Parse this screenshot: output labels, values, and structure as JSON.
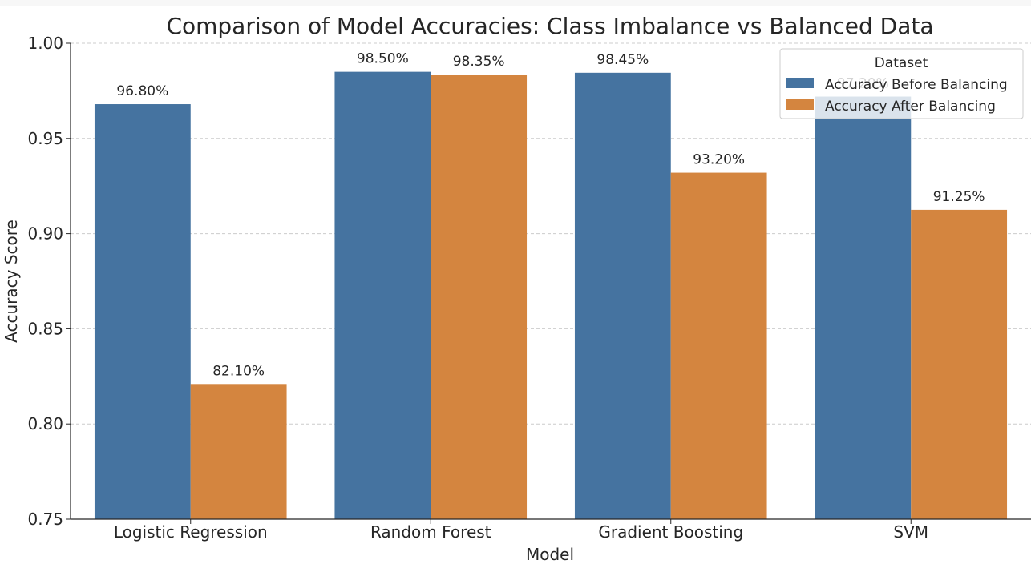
{
  "chart_data": {
    "type": "bar",
    "title": "Comparison of Model Accuracies: Class Imbalance vs Balanced Data",
    "xlabel": "Model",
    "ylabel": "Accuracy Score",
    "ylim": [
      0.75,
      1.0
    ],
    "yticks": [
      "0.75",
      "0.80",
      "0.85",
      "0.90",
      "0.95",
      "1.00"
    ],
    "categories": [
      "Logistic Regression",
      "Random Forest",
      "Gradient Boosting",
      "SVM"
    ],
    "series": [
      {
        "name": "Accuracy Before Balancing",
        "color": "#4573a0",
        "values": [
          0.968,
          0.985,
          0.9845,
          0.972
        ],
        "labels": [
          "96.80%",
          "98.50%",
          "98.45%",
          "97.20%"
        ]
      },
      {
        "name": "Accuracy After Balancing",
        "color": "#d4853f",
        "values": [
          0.821,
          0.9835,
          0.932,
          0.9125
        ],
        "labels": [
          "82.10%",
          "98.35%",
          "93.20%",
          "91.25%"
        ]
      }
    ],
    "legend": {
      "title": "Dataset",
      "position": "top-right"
    },
    "grid": "y-dashed"
  }
}
